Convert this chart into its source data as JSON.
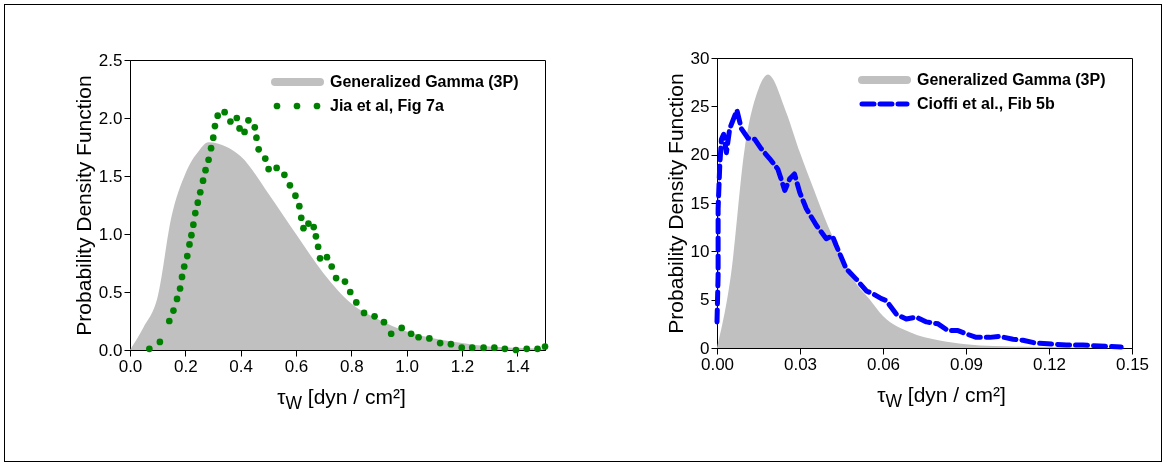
{
  "chart_data": [
    {
      "type": "area",
      "xlabel": "τ$_{W}$ [dyn / cm²]",
      "ylabel": "Probability Density Function",
      "xlim": [
        0,
        1.5
      ],
      "ylim": [
        0,
        2.5
      ],
      "xticks": [
        {
          "value": 0,
          "label": "0.0"
        },
        {
          "value": 0.2,
          "label": "0.2"
        },
        {
          "value": 0.4,
          "label": "0.4"
        },
        {
          "value": 0.6,
          "label": "0.6"
        },
        {
          "value": 0.8,
          "label": "0.8"
        },
        {
          "value": 1,
          "label": "1.0"
        },
        {
          "value": 1.2,
          "label": "1.2"
        },
        {
          "value": 1.4,
          "label": "1.4"
        }
      ],
      "yticks": [
        {
          "value": 0,
          "label": "0.0"
        },
        {
          "value": 0.5,
          "label": "0.5"
        },
        {
          "value": 1,
          "label": "1.0"
        },
        {
          "value": 1.5,
          "label": "1.5"
        },
        {
          "value": 2,
          "label": "2.0"
        },
        {
          "value": 2.5,
          "label": "2.5"
        }
      ],
      "legend": "top right",
      "grid": false,
      "series": [
        {
          "name": "Generalized Gamma (3P)",
          "color": "#c0c0c0",
          "x": [
            0,
            0.05,
            0.1,
            0.15,
            0.2,
            0.25,
            0.283,
            0.35,
            0.4,
            0.5,
            0.6,
            0.7,
            0.8,
            0.9,
            1.0,
            1.1,
            1.2,
            1.3,
            1.4,
            1.5
          ],
          "values": [
            0,
            0.2,
            0.46,
            1.15,
            1.52,
            1.72,
            1.79,
            1.75,
            1.67,
            1.35,
            1.0,
            0.66,
            0.4,
            0.26,
            0.16,
            0.1,
            0.06,
            0.03,
            0.02,
            0.01
          ]
        },
        {
          "name": "Jia et al, Fig 7a",
          "type": "scatter",
          "marker": "circle",
          "color": "#008000",
          "x": [
            0.07,
            0.108,
            0.142,
            0.157,
            0.17,
            0.181,
            0.188,
            0.196,
            0.207,
            0.215,
            0.222,
            0.229,
            0.236,
            0.245,
            0.254,
            0.264,
            0.273,
            0.284,
            0.293,
            0.301,
            0.307,
            0.317,
            0.342,
            0.363,
            0.386,
            0.396,
            0.414,
            0.428,
            0.451,
            0.457,
            0.465,
            0.489,
            0.501,
            0.53,
            0.558,
            0.578,
            0.598,
            0.612,
            0.619,
            0.627,
            0.645,
            0.664,
            0.672,
            0.68,
            0.687,
            0.712,
            0.729,
            0.745,
            0.777,
            0.796,
            0.818,
            0.846,
            0.884,
            0.918,
            0.944,
            0.982,
            1.016,
            1.043,
            1.082,
            1.121,
            1.16,
            1.199,
            1.237,
            1.278,
            1.317,
            1.355,
            1.395,
            1.434,
            1.473,
            1.5
          ],
          "values": [
            0.01,
            0.07,
            0.25,
            0.34,
            0.44,
            0.53,
            0.63,
            0.72,
            0.81,
            0.91,
            0.99,
            1.08,
            1.18,
            1.27,
            1.36,
            1.46,
            1.55,
            1.64,
            1.74,
            1.83,
            1.93,
            2.02,
            2.05,
            1.97,
            2.0,
            1.91,
            1.88,
            1.98,
            1.92,
            1.83,
            1.73,
            1.65,
            1.56,
            1.57,
            1.51,
            1.42,
            1.33,
            1.24,
            1.14,
            1.05,
            1.09,
            1.06,
            0.98,
            0.89,
            0.79,
            0.8,
            0.72,
            0.62,
            0.59,
            0.5,
            0.41,
            0.32,
            0.29,
            0.24,
            0.14,
            0.19,
            0.14,
            0.11,
            0.1,
            0.06,
            0.05,
            0.02,
            0.02,
            0.02,
            0.02,
            0.01,
            0.0,
            0.01,
            0.01,
            0.03
          ]
        }
      ]
    },
    {
      "type": "area",
      "xlabel": "τ$_{W}$ [dyn / cm²]",
      "ylabel": "Probability Density Function",
      "xlim": [
        0,
        0.15
      ],
      "ylim": [
        0,
        30
      ],
      "xticks": [
        {
          "value": 0,
          "label": "0.00"
        },
        {
          "value": 0.03,
          "label": "0.03"
        },
        {
          "value": 0.06,
          "label": "0.06"
        },
        {
          "value": 0.09,
          "label": "0.09"
        },
        {
          "value": 0.12,
          "label": "0.12"
        },
        {
          "value": 0.15,
          "label": "0.15"
        }
      ],
      "yticks": [
        0,
        5,
        10,
        15,
        20,
        25,
        30
      ],
      "legend": "top right",
      "grid": false,
      "series": [
        {
          "name": "Generalized Gamma (3P)",
          "color": "#c0c0c0",
          "x": [
            0,
            0.005,
            0.01,
            0.015,
            0.0184,
            0.025,
            0.03,
            0.035,
            0.04,
            0.045,
            0.05,
            0.055,
            0.06,
            0.07,
            0.08,
            0.09,
            0.1,
            0.12,
            0.15
          ],
          "values": [
            0,
            7.5,
            20.6,
            26.8,
            28.3,
            24.4,
            20.2,
            16.4,
            12.7,
            9.6,
            6.8,
            5.1,
            3.3,
            1.6,
            0.8,
            0.4,
            0.2,
            0.1,
            0
          ]
        },
        {
          "name": "Cioffi et al., Fib 5b",
          "type": "line",
          "line_style": "dashed",
          "color": "#0000ff",
          "x": [
            0,
            0.0004,
            0.0004,
            0.001,
            0.0016,
            0.0024,
            0.0034,
            0.0046,
            0.0072,
            0.0088,
            0.0112,
            0.0136,
            0.016,
            0.019,
            0.022,
            0.0245,
            0.0263,
            0.028,
            0.0299,
            0.0323,
            0.0359,
            0.0395,
            0.0417,
            0.0431,
            0.0467,
            0.0504,
            0.054,
            0.0564,
            0.0594,
            0.0612,
            0.0648,
            0.0684,
            0.072,
            0.0757,
            0.0799,
            0.0835,
            0.0871,
            0.0907,
            0.0937,
            0.0986,
            0.1022,
            0.107,
            0.1106,
            0.1154,
            0.1214,
            0.1263,
            0.1323,
            0.1383,
            0.1461
          ],
          "values": [
            2.7,
            7.5,
            14.4,
            18.9,
            21.6,
            22.1,
            20.2,
            22.7,
            24.6,
            22.7,
            21.7,
            21.6,
            20.6,
            19.6,
            18.5,
            16.3,
            17.5,
            18.0,
            16.1,
            14.4,
            12.7,
            11.3,
            11.6,
            10.6,
            8.2,
            7.1,
            5.9,
            5.6,
            5.1,
            4.9,
            3.5,
            3.0,
            3.2,
            2.7,
            2.5,
            1.8,
            1.8,
            1.4,
            1.1,
            1.1,
            1.2,
            0.9,
            0.8,
            0.5,
            0.4,
            0.3,
            0.3,
            0.2,
            0.1
          ]
        }
      ]
    }
  ]
}
